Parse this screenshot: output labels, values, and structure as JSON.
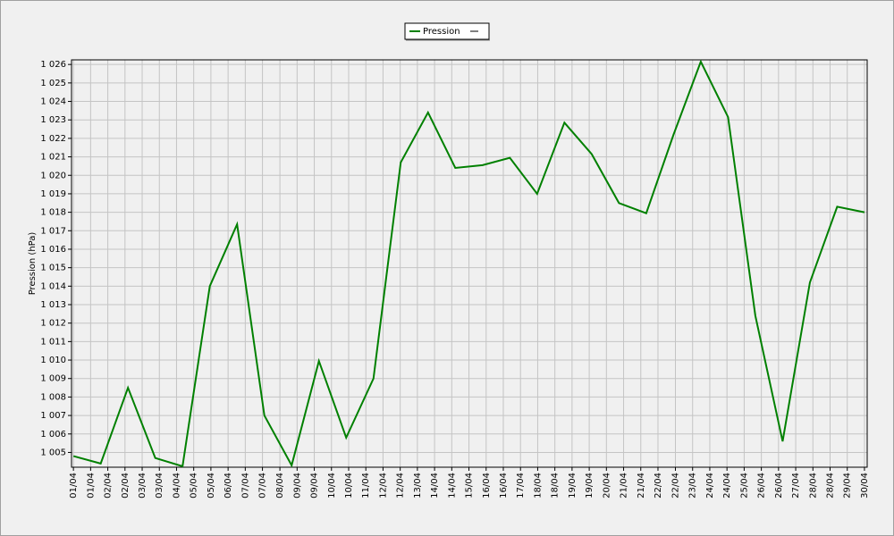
{
  "chart_data": {
    "type": "line",
    "y_label": "Pression (hPa)",
    "x": [
      1,
      2,
      3,
      4,
      5,
      6,
      7,
      8,
      9,
      10,
      11,
      12,
      13,
      14,
      15,
      16,
      17,
      18,
      19,
      20,
      21,
      22,
      23,
      24,
      25,
      26,
      27,
      28,
      29,
      30
    ],
    "series": [
      {
        "name": "Pression",
        "color": "#008000",
        "values": [
          1004.8,
          1004.4,
          1008.5,
          1004.7,
          1004.25,
          1014.0,
          1017.35,
          1007.0,
          1004.3,
          1009.95,
          1005.8,
          1009.0,
          1020.7,
          1023.4,
          1020.4,
          1020.55,
          1020.95,
          1019.0,
          1022.85,
          1021.15,
          1018.5,
          1017.95,
          1022.2,
          1026.15,
          1023.15,
          1012.4,
          1005.6,
          1014.2,
          1018.3,
          1018.0
        ]
      }
    ],
    "xlim": [
      0.93,
      30.1
    ],
    "ylim": [
      1004.2,
      1026.25
    ],
    "yticks": [
      {
        "value": 1005,
        "label": "1 005"
      },
      {
        "value": 1006,
        "label": "1 006"
      },
      {
        "value": 1007,
        "label": "1 007"
      },
      {
        "value": 1008,
        "label": "1 008"
      },
      {
        "value": 1009,
        "label": "1 009"
      },
      {
        "value": 1010,
        "label": "1 010"
      },
      {
        "value": 1011,
        "label": "1 011"
      },
      {
        "value": 1012,
        "label": "1 012"
      },
      {
        "value": 1013,
        "label": "1 013"
      },
      {
        "value": 1014,
        "label": "1 014"
      },
      {
        "value": 1015,
        "label": "1 015"
      },
      {
        "value": 1016,
        "label": "1 016"
      },
      {
        "value": 1017,
        "label": "1 017"
      },
      {
        "value": 1018,
        "label": "1 018"
      },
      {
        "value": 1019,
        "label": "1 019"
      },
      {
        "value": 1020,
        "label": "1 020"
      },
      {
        "value": 1021,
        "label": "1 021"
      },
      {
        "value": 1022,
        "label": "1 022"
      },
      {
        "value": 1023,
        "label": "1 023"
      },
      {
        "value": 1024,
        "label": "1 024"
      },
      {
        "value": 1025,
        "label": "1 025"
      },
      {
        "value": 1026,
        "label": "1 026"
      }
    ],
    "xticks": [
      {
        "value": 1.0,
        "label": "01/04"
      },
      {
        "value": 1.63,
        "label": "01/04"
      },
      {
        "value": 2.26,
        "label": "02/04"
      },
      {
        "value": 2.89,
        "label": "02/04"
      },
      {
        "value": 3.52,
        "label": "03/04"
      },
      {
        "value": 4.15,
        "label": "03/04"
      },
      {
        "value": 4.78,
        "label": "04/04"
      },
      {
        "value": 5.41,
        "label": "05/04"
      },
      {
        "value": 6.04,
        "label": "05/04"
      },
      {
        "value": 6.67,
        "label": "06/04"
      },
      {
        "value": 7.3,
        "label": "07/04"
      },
      {
        "value": 7.93,
        "label": "07/04"
      },
      {
        "value": 8.57,
        "label": "08/04"
      },
      {
        "value": 9.2,
        "label": "09/04"
      },
      {
        "value": 9.83,
        "label": "09/04"
      },
      {
        "value": 10.46,
        "label": "10/04"
      },
      {
        "value": 11.09,
        "label": "10/04"
      },
      {
        "value": 11.72,
        "label": "11/04"
      },
      {
        "value": 12.35,
        "label": "12/04"
      },
      {
        "value": 12.98,
        "label": "12/04"
      },
      {
        "value": 13.61,
        "label": "13/04"
      },
      {
        "value": 14.24,
        "label": "14/04"
      },
      {
        "value": 14.87,
        "label": "14/04"
      },
      {
        "value": 15.5,
        "label": "15/04"
      },
      {
        "value": 16.13,
        "label": "16/04"
      },
      {
        "value": 16.76,
        "label": "16/04"
      },
      {
        "value": 17.39,
        "label": "17/04"
      },
      {
        "value": 18.02,
        "label": "18/04"
      },
      {
        "value": 18.65,
        "label": "18/04"
      },
      {
        "value": 19.28,
        "label": "19/04"
      },
      {
        "value": 19.91,
        "label": "19/04"
      },
      {
        "value": 20.54,
        "label": "20/04"
      },
      {
        "value": 21.17,
        "label": "21/04"
      },
      {
        "value": 21.8,
        "label": "21/04"
      },
      {
        "value": 22.43,
        "label": "22/04"
      },
      {
        "value": 23.07,
        "label": "22/04"
      },
      {
        "value": 23.7,
        "label": "23/04"
      },
      {
        "value": 24.33,
        "label": "24/04"
      },
      {
        "value": 24.96,
        "label": "24/04"
      },
      {
        "value": 25.59,
        "label": "25/04"
      },
      {
        "value": 26.22,
        "label": "26/04"
      },
      {
        "value": 26.85,
        "label": "26/04"
      },
      {
        "value": 27.48,
        "label": "27/04"
      },
      {
        "value": 28.11,
        "label": "28/04"
      },
      {
        "value": 28.74,
        "label": "28/04"
      },
      {
        "value": 29.37,
        "label": "29/04"
      },
      {
        "value": 30.0,
        "label": "30/04"
      }
    ],
    "grid": true,
    "legend": "top"
  }
}
